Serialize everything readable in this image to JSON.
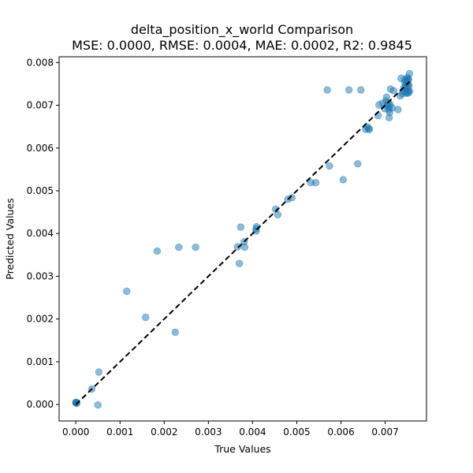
{
  "chart_data": {
    "type": "scatter",
    "title": "delta_position_x_world Comparison",
    "subtitle": "MSE: 0.0000, RMSE: 0.0004, MAE: 0.0002, R2: 0.9845",
    "xlabel": "True Values",
    "ylabel": "Predicted Values",
    "xlim": [
      -0.000378,
      0.007935
    ],
    "ylim": [
      -0.000385,
      0.008135
    ],
    "xticks": [
      0.0,
      0.001,
      0.002,
      0.003,
      0.004,
      0.005,
      0.006,
      0.007
    ],
    "yticks": [
      0.0,
      0.001,
      0.002,
      0.003,
      0.004,
      0.005,
      0.006,
      0.007,
      0.008
    ],
    "xtick_labels": [
      "0.000",
      "0.001",
      "0.002",
      "0.003",
      "0.004",
      "0.005",
      "0.006",
      "0.007"
    ],
    "ytick_labels": [
      "0.000",
      "0.001",
      "0.002",
      "0.003",
      "0.004",
      "0.005",
      "0.006",
      "0.007",
      "0.008"
    ],
    "grid": false,
    "point_color": "#1f77b4",
    "point_alpha": 0.5,
    "reference_line": {
      "x": [
        0.0,
        0.00755
      ],
      "y": [
        0.0,
        0.00755
      ],
      "color": "#000000",
      "style": "dashed"
    },
    "points": [
      [
        0.0,
        4e-05
      ],
      [
        1e-05,
        5e-05
      ],
      [
        2e-05,
        3e-05
      ],
      [
        0.0,
        5e-05
      ],
      [
        1e-05,
        4e-05
      ],
      [
        0.00036,
        0.00036
      ],
      [
        0.00052,
        0.00076
      ],
      [
        0.0005,
        -1e-05
      ],
      [
        0.00115,
        0.00265
      ],
      [
        0.00158,
        0.00204
      ],
      [
        0.00184,
        0.00359
      ],
      [
        0.00225,
        0.00169
      ],
      [
        0.00233,
        0.00368
      ],
      [
        0.00271,
        0.00368
      ],
      [
        0.00366,
        0.00369
      ],
      [
        0.0037,
        0.0033
      ],
      [
        0.00373,
        0.00415
      ],
      [
        0.00381,
        0.00381
      ],
      [
        0.00382,
        0.00368
      ],
      [
        0.00408,
        0.00406
      ],
      [
        0.00409,
        0.00416
      ],
      [
        0.00408,
        0.00411
      ],
      [
        0.00452,
        0.00457
      ],
      [
        0.00457,
        0.00444
      ],
      [
        0.0048,
        0.0048
      ],
      [
        0.00489,
        0.00484
      ],
      [
        0.00532,
        0.00519
      ],
      [
        0.00543,
        0.00519
      ],
      [
        0.00569,
        0.00736
      ],
      [
        0.00574,
        0.00558
      ],
      [
        0.00605,
        0.00526
      ],
      [
        0.00618,
        0.00736
      ],
      [
        0.00638,
        0.00563
      ],
      [
        0.00645,
        0.00736
      ],
      [
        0.00656,
        0.00644
      ],
      [
        0.0066,
        0.00649
      ],
      [
        0.00663,
        0.00646
      ],
      [
        0.00664,
        0.00643
      ],
      [
        0.00684,
        0.00676
      ],
      [
        0.00686,
        0.00701
      ],
      [
        0.00694,
        0.00705
      ],
      [
        0.00699,
        0.00692
      ],
      [
        0.00702,
        0.0071
      ],
      [
        0.00703,
        0.00719
      ],
      [
        0.00705,
        0.00699
      ],
      [
        0.00707,
        0.00705
      ],
      [
        0.00708,
        0.0069
      ],
      [
        0.00709,
        0.00694
      ],
      [
        0.00709,
        0.00671
      ],
      [
        0.0071,
        0.00683
      ],
      [
        0.00711,
        0.00702
      ],
      [
        0.00712,
        0.00738
      ],
      [
        0.00716,
        0.00694
      ],
      [
        0.00719,
        0.00734
      ],
      [
        0.00729,
        0.0069
      ],
      [
        0.00734,
        0.00722
      ],
      [
        0.00736,
        0.00763
      ],
      [
        0.00739,
        0.00727
      ],
      [
        0.00741,
        0.00733
      ],
      [
        0.00742,
        0.0074
      ],
      [
        0.00744,
        0.00754
      ],
      [
        0.00745,
        0.00761
      ],
      [
        0.00746,
        0.00746
      ],
      [
        0.00747,
        0.0073
      ],
      [
        0.00748,
        0.00758
      ],
      [
        0.00749,
        0.00735
      ],
      [
        0.0075,
        0.00765
      ],
      [
        0.0075,
        0.00752
      ],
      [
        0.00751,
        0.00739
      ],
      [
        0.00752,
        0.00733
      ],
      [
        0.00752,
        0.00758
      ],
      [
        0.00753,
        0.00729
      ],
      [
        0.00754,
        0.00746
      ],
      [
        0.00755,
        0.00774
      ],
      [
        0.00755,
        0.00733
      ],
      [
        0.00753,
        0.00762
      ],
      [
        0.00751,
        0.00746
      ],
      [
        0.00749,
        0.00728
      ]
    ]
  }
}
